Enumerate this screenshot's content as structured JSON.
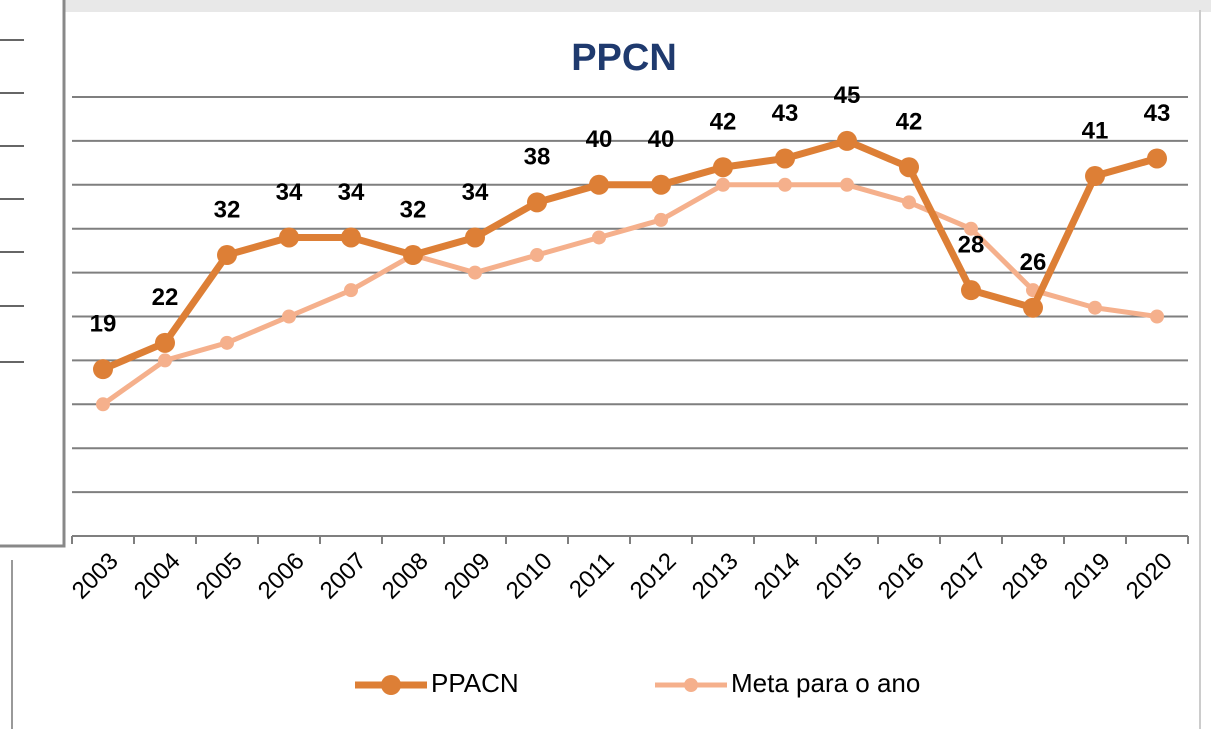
{
  "chart_data": {
    "type": "line",
    "title": "PPCN",
    "categories": [
      "2003",
      "2004",
      "2005",
      "2006",
      "2007",
      "2008",
      "2009",
      "2010",
      "2011",
      "2012",
      "2013",
      "2014",
      "2015",
      "2016",
      "2017",
      "2018",
      "2019",
      "2020"
    ],
    "series": [
      {
        "name": "PPACN",
        "color": "#dd7f36",
        "values": [
          19,
          22,
          32,
          34,
          34,
          32,
          34,
          38,
          40,
          40,
          42,
          43,
          45,
          42,
          28,
          26,
          41,
          43
        ]
      },
      {
        "name": "Meta para o ano",
        "color": "#f5b08c",
        "values": [
          15,
          20,
          22,
          25,
          28,
          32,
          30,
          32,
          34,
          36,
          40,
          40,
          40,
          38,
          35,
          28,
          26,
          25
        ]
      }
    ],
    "ylim": [
      0,
      50
    ],
    "yticks": [
      0,
      5,
      10,
      15,
      20,
      25,
      30,
      35,
      40,
      45,
      50
    ],
    "grid": true
  }
}
